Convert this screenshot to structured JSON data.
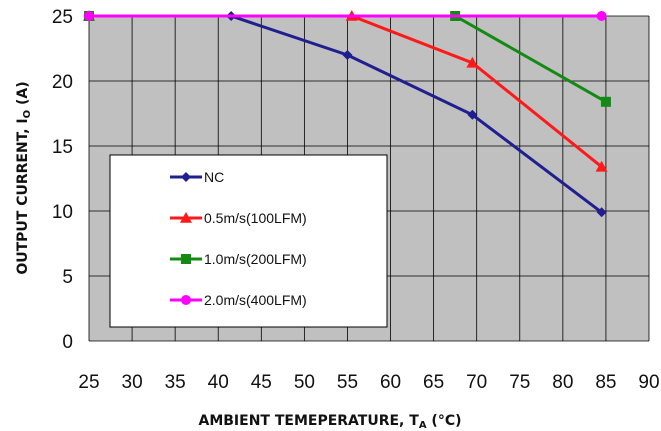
{
  "chart_data": {
    "type": "line",
    "xlabel": "AMBIENT TEMEPERATURE, T",
    "xlabel_sub": "A",
    "xlabel_unit": " (°C)",
    "ylabel": "OUTPUT CURRENT, I",
    "ylabel_sub": "O",
    "ylabel_unit": " (A)",
    "xlim": [
      25,
      90
    ],
    "ylim": [
      0,
      25
    ],
    "xticks": [
      25,
      30,
      35,
      40,
      45,
      50,
      55,
      60,
      65,
      70,
      75,
      80,
      85,
      90
    ],
    "yticks": [
      0,
      5,
      10,
      15,
      20,
      25
    ],
    "grid": true,
    "legend_position": "bottom-left",
    "background_color": "#c0c0c0",
    "series": [
      {
        "name": "NC",
        "color": "#1f1f8f",
        "marker": "diamond",
        "x": [
          25,
          41.5,
          55,
          69.5,
          84.5
        ],
        "y": [
          25,
          25,
          22,
          17.4,
          9.9
        ]
      },
      {
        "name": "0.5m/s(100LFM)",
        "color": "#ff1a1a",
        "marker": "triangle",
        "x": [
          25,
          55.5,
          69.5,
          84.5
        ],
        "y": [
          25,
          25,
          21.4,
          13.4
        ]
      },
      {
        "name": "1.0m/s(200LFM)",
        "color": "#138a13",
        "marker": "square",
        "x": [
          25,
          67.5,
          85
        ],
        "y": [
          25,
          25,
          18.4
        ]
      },
      {
        "name": "2.0m/s(400LFM)",
        "color": "#ff00ff",
        "marker": "circle",
        "x": [
          25,
          84.5
        ],
        "y": [
          25,
          25
        ]
      }
    ]
  }
}
